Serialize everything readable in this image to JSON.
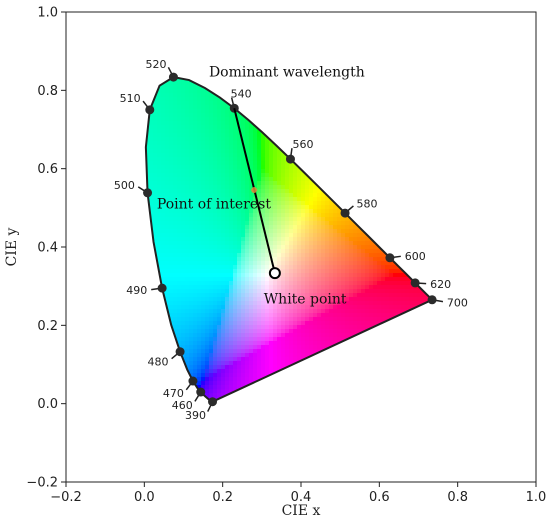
{
  "chart_data": {
    "type": "scatter",
    "title": "",
    "xlabel": "CIE x",
    "ylabel": "CIE y",
    "xlim": [
      -0.2,
      1.0
    ],
    "ylim": [
      -0.2,
      1.0
    ],
    "x_ticks": [
      -0.2,
      0.0,
      0.2,
      0.4,
      0.6,
      0.8,
      1.0
    ],
    "y_ticks": [
      -0.2,
      0.0,
      0.2,
      0.4,
      0.6,
      0.8,
      1.0
    ],
    "x_tick_labels": [
      "−0.2",
      "0.0",
      "0.2",
      "0.4",
      "0.6",
      "0.8",
      "1.0"
    ],
    "y_tick_labels": [
      "−0.2",
      "0.0",
      "0.2",
      "0.4",
      "0.6",
      "0.8",
      "1.0"
    ],
    "grid": false,
    "spectral_locus": [
      [
        0.1741,
        0.005
      ],
      [
        0.1738,
        0.0049
      ],
      [
        0.1736,
        0.0049
      ],
      [
        0.173,
        0.0048
      ],
      [
        0.1721,
        0.0048
      ],
      [
        0.1703,
        0.0058
      ],
      [
        0.1666,
        0.0089
      ],
      [
        0.1611,
        0.0138
      ],
      [
        0.1566,
        0.0177
      ],
      [
        0.151,
        0.0227
      ],
      [
        0.144,
        0.0297
      ],
      [
        0.1355,
        0.0399
      ],
      [
        0.1241,
        0.0578
      ],
      [
        0.1096,
        0.0868
      ],
      [
        0.0913,
        0.1327
      ],
      [
        0.0687,
        0.2007
      ],
      [
        0.0454,
        0.295
      ],
      [
        0.0235,
        0.4127
      ],
      [
        0.0082,
        0.5384
      ],
      [
        0.0039,
        0.6548
      ],
      [
        0.0139,
        0.7502
      ],
      [
        0.0389,
        0.812
      ],
      [
        0.0743,
        0.8338
      ],
      [
        0.1142,
        0.8262
      ],
      [
        0.1547,
        0.8059
      ],
      [
        0.1929,
        0.7816
      ],
      [
        0.2296,
        0.7543
      ],
      [
        0.2658,
        0.7243
      ],
      [
        0.3016,
        0.6923
      ],
      [
        0.3373,
        0.6589
      ],
      [
        0.3731,
        0.6245
      ],
      [
        0.4087,
        0.5896
      ],
      [
        0.4441,
        0.5547
      ],
      [
        0.4788,
        0.5202
      ],
      [
        0.5125,
        0.4866
      ],
      [
        0.5448,
        0.4544
      ],
      [
        0.5752,
        0.4242
      ],
      [
        0.6029,
        0.3965
      ],
      [
        0.627,
        0.3725
      ],
      [
        0.6482,
        0.3514
      ],
      [
        0.6658,
        0.334
      ],
      [
        0.6801,
        0.3197
      ],
      [
        0.6915,
        0.3083
      ],
      [
        0.7006,
        0.2993
      ],
      [
        0.7079,
        0.292
      ],
      [
        0.714,
        0.2859
      ],
      [
        0.719,
        0.2809
      ],
      [
        0.723,
        0.277
      ],
      [
        0.726,
        0.274
      ],
      [
        0.7283,
        0.2717
      ],
      [
        0.73,
        0.27
      ],
      [
        0.732,
        0.268
      ],
      [
        0.7347,
        0.2653
      ]
    ],
    "wavelength_markers": [
      {
        "label": "390",
        "x": 0.1741,
        "y": 0.005,
        "side": "left"
      },
      {
        "label": "460",
        "x": 0.144,
        "y": 0.0297,
        "side": "left"
      },
      {
        "label": "470",
        "x": 0.1241,
        "y": 0.0578,
        "side": "left"
      },
      {
        "label": "480",
        "x": 0.0913,
        "y": 0.1327,
        "side": "left"
      },
      {
        "label": "490",
        "x": 0.0454,
        "y": 0.295,
        "side": "left"
      },
      {
        "label": "500",
        "x": 0.0082,
        "y": 0.5384,
        "side": "left"
      },
      {
        "label": "510",
        "x": 0.0139,
        "y": 0.7502,
        "side": "left"
      },
      {
        "label": "520",
        "x": 0.0743,
        "y": 0.8338,
        "side": "left"
      },
      {
        "label": "540",
        "x": 0.2296,
        "y": 0.7543,
        "side": "right"
      },
      {
        "label": "560",
        "x": 0.3731,
        "y": 0.6245,
        "side": "right"
      },
      {
        "label": "580",
        "x": 0.5125,
        "y": 0.4866,
        "side": "right"
      },
      {
        "label": "600",
        "x": 0.627,
        "y": 0.3725,
        "side": "right"
      },
      {
        "label": "620",
        "x": 0.6915,
        "y": 0.3083,
        "side": "right"
      },
      {
        "label": "700",
        "x": 0.7347,
        "y": 0.2653,
        "side": "right"
      }
    ],
    "white_point": {
      "x": 0.3333,
      "y": 0.3333
    },
    "point_of_interest": {
      "x": 0.2804,
      "y": 0.5455
    },
    "dominant_line": {
      "from": [
        0.3333,
        0.3333
      ],
      "to": [
        0.2296,
        0.7543
      ]
    },
    "annotations": [
      {
        "text": "Dominant wavelength",
        "x": 0.165,
        "y": 0.835
      },
      {
        "text": "Point of interest",
        "x": 0.032,
        "y": 0.498
      },
      {
        "text": "White point",
        "x": 0.305,
        "y": 0.256
      }
    ]
  }
}
